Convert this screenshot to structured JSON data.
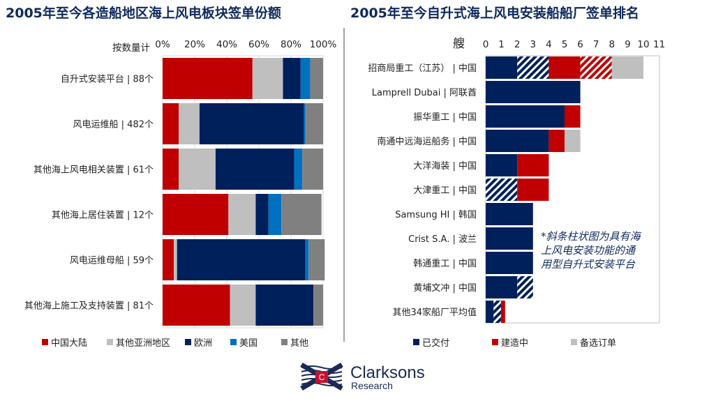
{
  "colors": {
    "china": "#c00000",
    "other_asia": "#bfbfbf",
    "europe": "#00205b",
    "usa": "#0070c0",
    "other": "#808080",
    "title": "#0e2a5c"
  },
  "chart_data": [
    {
      "type": "bar",
      "orientation": "horizontal-stacked-100",
      "title": "2005年至今各造船地区海上风电板块签单份额",
      "xlabel": "按数量计",
      "xlim": [
        0,
        100
      ],
      "ticks": [
        "0%",
        "20%",
        "40%",
        "60%",
        "80%",
        "100%"
      ],
      "grid": true,
      "legend_position": "bottom",
      "categories": [
        "自升式安装平台 | 88个",
        "风电运维船 | 482个",
        "其他海上风电相关装置 | 61个",
        "其他海上居住装置 | 12个",
        "风电运维母船 | 59个",
        "其他海上施工及支持装置 | 81个"
      ],
      "series": [
        {
          "name": "中国大陆",
          "color_key": "china",
          "values": [
            56,
            10,
            10,
            41,
            7,
            42
          ]
        },
        {
          "name": "其他亚洲地区",
          "color_key": "other_asia",
          "values": [
            19,
            13,
            23,
            17,
            2,
            16
          ]
        },
        {
          "name": "欧洲",
          "color_key": "europe",
          "values": [
            11,
            65,
            49,
            8,
            80,
            36
          ]
        },
        {
          "name": "美国",
          "color_key": "usa",
          "values": [
            6,
            1,
            5,
            8,
            2,
            0
          ]
        },
        {
          "name": "其他",
          "color_key": "other",
          "values": [
            8,
            11,
            13,
            25,
            10,
            6
          ]
        }
      ]
    },
    {
      "type": "bar",
      "orientation": "horizontal-stacked",
      "title": "2005年至今自升式海上风电安装船船厂签单排名",
      "xlabel": "艘",
      "xlim": [
        0,
        11
      ],
      "ticks": [
        "0",
        "1",
        "2",
        "3",
        "4",
        "5",
        "6",
        "7",
        "8",
        "9",
        "10",
        "11"
      ],
      "grid": false,
      "legend_position": "bottom",
      "annotation": "*斜条柱状图为具有海上风电安装功能的通用型自升式安装平台",
      "annotation_lines": [
        "*斜条柱状图为具有海",
        "上风电安装功能的通",
        "用型自升式安装平台"
      ],
      "categories": [
        "招商局重工（江苏） | 中国",
        "Lamprell Dubai | 阿联酋",
        "振华重工 | 中国",
        "南通中远海运船务 | 中国",
        "大洋海装 | 中国",
        "大津重工 | 中国",
        "Samsung HI | 韩国",
        "Crist S.A. | 波兰",
        "韩通重工 | 中国",
        "黄埔文冲 | 中国",
        "其他34家船厂平均值"
      ],
      "series": [
        {
          "name": "已交付",
          "color_key": "europe",
          "hatched": false,
          "values": [
            2,
            6,
            5,
            4,
            2,
            0,
            3,
            3,
            3,
            2,
            0.5
          ]
        },
        {
          "name": "已交付",
          "color_key": "europe",
          "hatched": true,
          "values": [
            2,
            0,
            0,
            0,
            0,
            2,
            0,
            0,
            0,
            1,
            0.47
          ]
        },
        {
          "name": "建造中",
          "color_key": "china",
          "hatched": false,
          "values": [
            2,
            0,
            1,
            1,
            2,
            2,
            0,
            0,
            0,
            0,
            0.26
          ]
        },
        {
          "name": "建造中",
          "color_key": "china",
          "hatched": true,
          "values": [
            2,
            0,
            0,
            0,
            0,
            0,
            0,
            0,
            0,
            0,
            0
          ]
        },
        {
          "name": "备选订单",
          "color_key": "other_asia",
          "hatched": false,
          "values": [
            2,
            0,
            0,
            1,
            0,
            0,
            0,
            0,
            0,
            0,
            0
          ]
        }
      ],
      "legend": [
        {
          "name": "已交付",
          "color_key": "europe"
        },
        {
          "name": "建造中",
          "color_key": "china"
        },
        {
          "name": "备选订单",
          "color_key": "other_asia"
        }
      ]
    }
  ],
  "logo": {
    "name": "Clarksons",
    "sub": "Research",
    "mark": "C"
  }
}
